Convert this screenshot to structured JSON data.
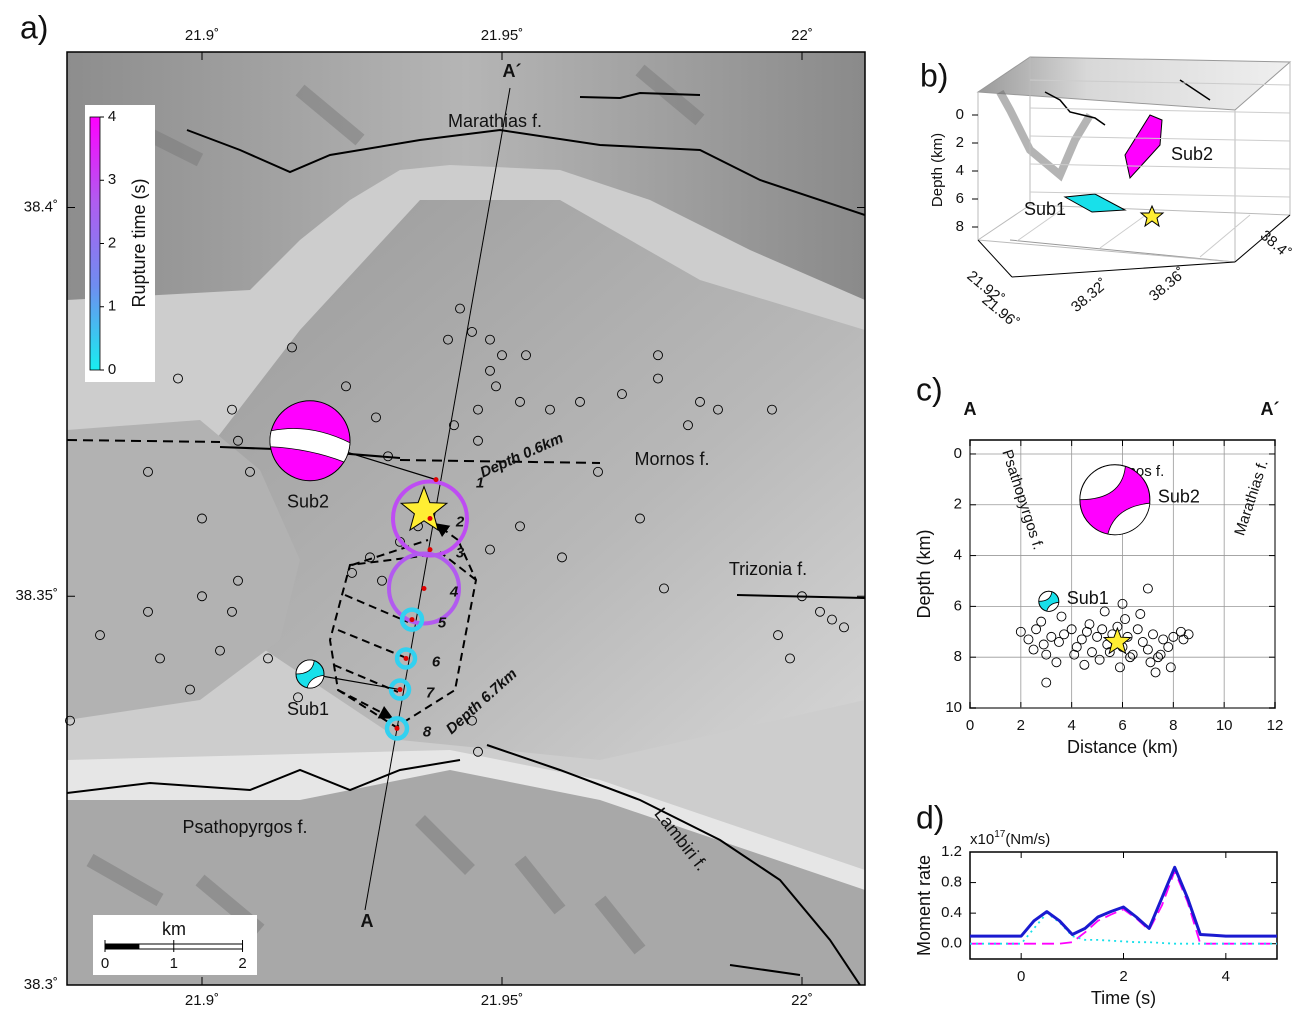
{
  "panel_a": {
    "label": "a)",
    "xlim": [
      21.8775,
      22.0105
    ],
    "ylim": [
      38.3,
      38.42
    ],
    "xticks": [
      {
        "value": 21.9,
        "label": "21.9˚"
      },
      {
        "value": 21.95,
        "label": "21.95˚"
      },
      {
        "value": 22,
        "label": "22˚"
      }
    ],
    "yticks": [
      {
        "value": 38.3,
        "label": "38.3˚"
      },
      {
        "value": 38.35,
        "label": "38.35˚"
      },
      {
        "value": 38.4,
        "label": "38.4˚"
      }
    ],
    "colorbar": {
      "label": "Rupture time (s)",
      "lim": [
        0,
        4
      ],
      "ticks": [
        0,
        1,
        2,
        3,
        4
      ],
      "colormap": [
        "#18eef0",
        "#6f8df0",
        "#b05cf0",
        "#ff00ff"
      ]
    },
    "fault_labels": [
      "Marathias f.",
      "Mornos f.",
      "Trizonia f.",
      "Psathopyrgos f.",
      "Lambiri f."
    ],
    "profile_labels": [
      "A",
      "A´"
    ],
    "depth_labels": [
      "Depth 0.6km",
      "Depth 6.7km"
    ],
    "seismicity": {
      "lon": [
        21.943,
        21.945,
        21.941,
        21.948,
        21.95,
        21.948,
        21.954,
        21.949,
        21.946,
        21.942,
        21.946,
        21.953,
        21.958,
        21.963,
        21.97,
        21.976,
        21.983,
        21.986,
        21.976,
        21.981,
        21.995,
        21.966,
        21.973,
        21.953,
        21.96,
        21.977,
        21.996,
        21.998,
        22.0,
        22.003,
        22.005,
        22.007,
        21.896,
        21.905,
        21.906,
        21.891,
        21.9,
        21.908,
        21.915,
        21.924,
        21.929,
        21.931,
        21.928,
        21.925,
        21.9,
        21.905,
        21.891,
        21.883,
        21.893,
        21.903,
        21.911,
        21.898,
        21.878,
        21.916,
        21.946,
        21.945,
        21.948,
        21.936,
        21.933,
        21.93,
        21.906
      ],
      "lat": [
        38.387,
        38.384,
        38.383,
        38.383,
        38.381,
        38.379,
        38.381,
        38.377,
        38.374,
        38.372,
        38.37,
        38.375,
        38.374,
        38.375,
        38.376,
        38.378,
        38.375,
        38.374,
        38.381,
        38.372,
        38.374,
        38.366,
        38.36,
        38.359,
        38.355,
        38.351,
        38.345,
        38.342,
        38.35,
        38.348,
        38.347,
        38.346,
        38.378,
        38.374,
        38.37,
        38.366,
        38.36,
        38.366,
        38.382,
        38.377,
        38.373,
        38.368,
        38.355,
        38.353,
        38.35,
        38.348,
        38.348,
        38.345,
        38.342,
        38.343,
        38.342,
        38.338,
        38.334,
        38.337,
        38.33,
        38.334,
        38.356,
        38.359,
        38.357,
        38.352,
        38.352
      ]
    },
    "epicenter": {
      "lon": 21.937,
      "lat": 38.361
    },
    "subevents": {
      "labels": [
        "1",
        "2",
        "3",
        "4",
        "5",
        "6",
        "7",
        "8"
      ],
      "lon": [
        21.939,
        21.938,
        21.938,
        21.937,
        21.935,
        21.934,
        21.933,
        21.9325
      ],
      "lat": [
        38.365,
        38.36,
        38.356,
        38.351,
        38.347,
        38.342,
        38.338,
        38.333
      ],
      "time": [
        2.9,
        2.9,
        2.8,
        2.7,
        0.4,
        0.4,
        0.4,
        0.4
      ]
    },
    "mechanisms": [
      {
        "label": "Sub2",
        "lon": 21.918,
        "lat": 38.37,
        "color": "#ff00ff"
      },
      {
        "label": "Sub1",
        "lon": 21.918,
        "lat": 38.34,
        "color": "#18e0ea"
      }
    ],
    "scale_bar": {
      "title": "km",
      "ticks": [
        0,
        1,
        2
      ]
    }
  },
  "panel_b": {
    "label": "b)",
    "zlabel": "Depth (km)",
    "zticks": [
      0,
      2,
      4,
      6,
      8
    ],
    "lon_ticks": [
      "21.92˚",
      "21.96˚"
    ],
    "lat_ticks": [
      "38.32˚",
      "38.36˚",
      "38.4˚"
    ],
    "sub_labels": [
      "Sub1",
      "Sub2"
    ]
  },
  "chart_data": [
    {
      "type": "scatter",
      "label": "c)",
      "xlabel": "Distance (km)",
      "ylabel": "Depth (km)",
      "xlim": [
        0,
        12
      ],
      "ylim": [
        -0.55,
        10
      ],
      "y_reversed": true,
      "xticks": [
        0,
        2,
        4,
        6,
        8,
        10,
        12
      ],
      "yticks": [
        0,
        2,
        4,
        6,
        8,
        10
      ],
      "grid": true,
      "profile_labels": [
        "A",
        "A´"
      ],
      "fault_labels": [
        "Mornos f.",
        "Psathopyrgos f.",
        "Marathias f."
      ],
      "x": [
        2.0,
        2.3,
        2.6,
        2.9,
        3.2,
        3.5,
        3.7,
        4.0,
        4.2,
        4.4,
        4.6,
        4.8,
        5.0,
        5.2,
        5.4,
        5.6,
        5.8,
        6.0,
        6.2,
        6.4,
        6.6,
        6.8,
        7.0,
        7.2,
        7.4,
        7.6,
        7.8,
        8.0,
        8.3,
        8.6,
        2.5,
        3.0,
        3.4,
        4.1,
        4.5,
        5.1,
        5.5,
        5.9,
        6.3,
        6.7,
        7.1,
        7.5,
        7.9,
        8.4,
        2.8,
        3.6,
        4.7,
        6.1,
        7.3,
        7.0,
        3.0,
        6.0,
        5.3
      ],
      "values": [
        7.0,
        7.3,
        6.9,
        7.5,
        7.2,
        7.4,
        7.1,
        6.9,
        7.6,
        7.3,
        7.0,
        7.8,
        7.2,
        6.9,
        7.5,
        7.1,
        6.8,
        7.6,
        7.2,
        7.9,
        6.9,
        7.4,
        7.7,
        7.1,
        8.0,
        7.3,
        7.6,
        7.2,
        7.0,
        7.1,
        7.7,
        7.9,
        8.2,
        7.9,
        8.3,
        8.1,
        7.8,
        8.4,
        8.0,
        6.3,
        8.2,
        7.9,
        8.4,
        7.3,
        6.6,
        6.4,
        6.7,
        6.5,
        8.6,
        5.3,
        9.0,
        5.9,
        6.2
      ],
      "mechanisms": [
        {
          "label": "Sub2",
          "x": 5.7,
          "depth": 1.8,
          "color": "#ff00ff"
        },
        {
          "label": "Sub1",
          "x": 3.1,
          "depth": 5.8,
          "color": "#18e0ea"
        }
      ],
      "epicenter": {
        "x": 5.8,
        "depth": 7.4
      }
    },
    {
      "type": "line",
      "label": "d)",
      "xlabel": "Time (s)",
      "ylabel": "Moment rate",
      "scale_label": {
        "base": "x10",
        "exponent": "17",
        "unit": "(Nm/s)"
      },
      "xlim": [
        -1,
        5
      ],
      "ylim": [
        -0.2,
        1.2
      ],
      "xticks": [
        0,
        2,
        4
      ],
      "yticks": [
        {
          "value": 0,
          "label": "0.0"
        },
        0.4,
        0.8,
        1.2
      ],
      "x": [
        -1,
        -0.5,
        0,
        0.25,
        0.5,
        0.75,
        1,
        1.25,
        1.5,
        1.75,
        2,
        2.25,
        2.5,
        2.75,
        3,
        3.25,
        3.5,
        3.75,
        4,
        5
      ],
      "series": [
        {
          "color": "#ff00ff",
          "style": "dashed",
          "values": [
            0,
            0,
            0,
            0,
            0,
            0,
            0.02,
            0.15,
            0.3,
            0.38,
            0.45,
            0.33,
            0.18,
            0.5,
            0.95,
            0.55,
            0,
            0,
            0,
            0
          ]
        },
        {
          "color": "#18e0ea",
          "style": "dotted",
          "values": [
            0,
            0,
            0,
            0.2,
            0.4,
            0.28,
            0.1,
            0.05,
            0.05,
            0.04,
            0.03,
            0.02,
            0.02,
            0.01,
            0,
            0,
            0,
            0,
            0,
            0
          ]
        },
        {
          "color": "#1a1ad0",
          "style": "solid",
          "values": [
            0.1,
            0.1,
            0.1,
            0.3,
            0.42,
            0.3,
            0.12,
            0.2,
            0.35,
            0.42,
            0.48,
            0.35,
            0.2,
            0.6,
            1.0,
            0.6,
            0.12,
            0.11,
            0.1,
            0.1
          ]
        }
      ]
    }
  ]
}
